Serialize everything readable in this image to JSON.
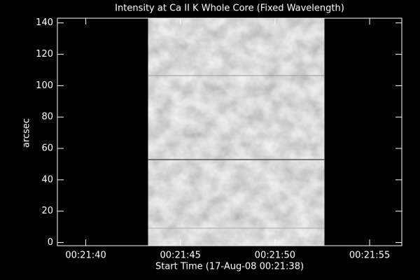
{
  "chart_data": {
    "type": "image",
    "title": "Intensity at Ca II K Whole Core (Fixed Wavelength)",
    "x_label": "Start Time (17-Aug-08 00:21:38)",
    "y_label": "arcsec",
    "xlim": [
      0.5,
      18.7
    ],
    "xticks": [
      {
        "value": 2,
        "label": "00:21:40"
      },
      {
        "value": 7,
        "label": "00:21:45"
      },
      {
        "value": 12,
        "label": "00:21:50"
      },
      {
        "value": 17,
        "label": "00:21:55"
      }
    ],
    "ylim": [
      -2,
      143
    ],
    "yticks": [
      0,
      20,
      40,
      60,
      80,
      100,
      120,
      140
    ],
    "image_extent_x": [
      5.3,
      14.6
    ]
  }
}
